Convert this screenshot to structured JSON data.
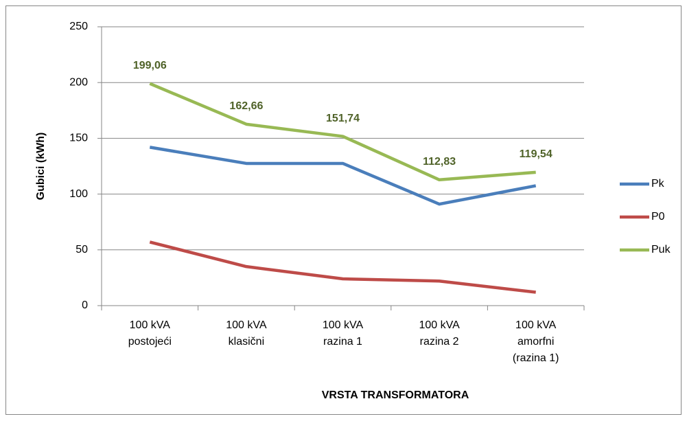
{
  "chart_data": {
    "type": "line",
    "x_label": "VRSTA TRANSFORMATORA",
    "y_label": "Gubici (kWh)",
    "categories": [
      [
        "100 kVA",
        "postojeći"
      ],
      [
        "100 kVA",
        "klasični"
      ],
      [
        "100 kVA",
        "razina 1"
      ],
      [
        "100 kVA",
        "razina 2"
      ],
      [
        "100 kVA",
        "amorfni",
        "(razina 1)"
      ]
    ],
    "series": [
      {
        "name": "Pk",
        "color": "#4a7ebb",
        "values": [
          142,
          127.5,
          127.5,
          91,
          107.5
        ]
      },
      {
        "name": "P0",
        "color": "#be4b48",
        "values": [
          57,
          35,
          24,
          22,
          12
        ]
      },
      {
        "name": "Puk",
        "color": "#98b954",
        "values": [
          199.06,
          162.66,
          151.74,
          112.83,
          119.54
        ],
        "value_labels": [
          "199,06",
          "162,66",
          "151,74",
          "112,83",
          "119,54"
        ],
        "label_color": "#4f6228"
      }
    ],
    "ylim": [
      0,
      250
    ],
    "yticks": [
      0,
      50,
      100,
      150,
      200,
      250
    ],
    "grid": true,
    "legend": "right"
  }
}
